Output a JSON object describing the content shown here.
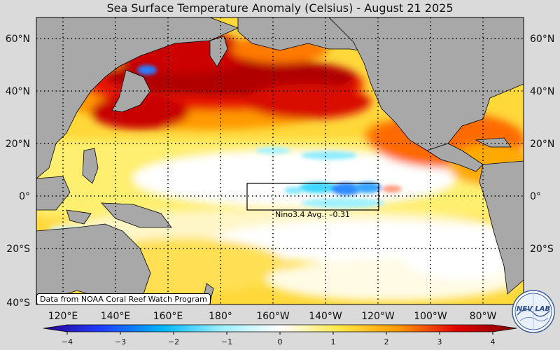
{
  "title": "Sea Surface Temperature Anomaly (Celsius) - August 21 2025",
  "lat_labels": [
    "60°N",
    "40°N",
    "20°N",
    "0°",
    "20°S",
    "40°S"
  ],
  "lon_labels": [
    "120°E",
    "140°E",
    "160°E",
    "180°",
    "160°W",
    "140°W",
    "120°W",
    "100°W",
    "80°W"
  ],
  "colorbar": {
    "ticks": [
      "−4",
      "−3",
      "−2",
      "−1",
      "0",
      "1",
      "2",
      "3",
      "4"
    ],
    "min": -4,
    "max": 4
  },
  "nino_box": {
    "label": "Nino3.4 Avg.: –0.31"
  },
  "credit": "Data from NOAA Coral Reef Watch Program",
  "logo_text": "NEV LAB",
  "colors": {
    "land": "#a8a8a8",
    "background": "#dadada",
    "warm_strong": "#b30000",
    "warm": "#ff9900",
    "mild": "#ffe84a",
    "neutral": "#ffffff",
    "cool": "#33ddff",
    "cold": "#1f3fff"
  }
}
